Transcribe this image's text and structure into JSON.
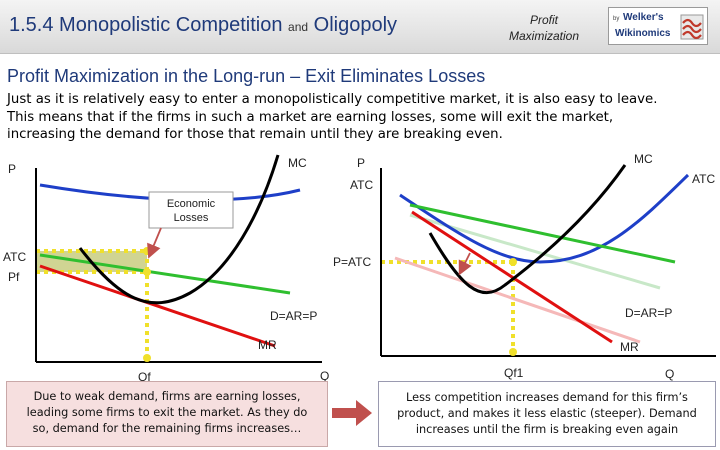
{
  "header": {
    "title": "1.5.4 Monopolistic Competition",
    "and": "and",
    "title2": "Oligopoly",
    "sub_line1": "Profit",
    "sub_line2": "Maximization",
    "logo_by": "by",
    "logo_name1": "Welker's",
    "logo_name2": "Wikinomics"
  },
  "subtitle": "Profit Maximization in the Long-run – Exit Eliminates Losses",
  "paragraph": {
    "line1": "Just as it is relatively easy to enter a monopolistically competitive market, it is also easy to leave.",
    "line2": "This means that if the firms in such a market are earning losses, some will exit the market,",
    "line3": "increasing the demand for those that remain until they are breaking even."
  },
  "left_graph": {
    "y_axis": "P",
    "x_axis": "Q",
    "mc": "MC",
    "atc": "ATC",
    "atc_axis": "ATC",
    "pf": "Pf",
    "qf": "Qf",
    "demand": "D=AR=P",
    "mr": "MR",
    "callout_line1": "Economic",
    "callout_line2": "Losses"
  },
  "right_graph": {
    "y_axis": "P",
    "x_axis": "Q",
    "mc": "MC",
    "atc": "ATC",
    "p_atc": "P=ATC",
    "q1": "Qf1",
    "demand": "D=AR=P",
    "mr": "MR"
  },
  "captions": {
    "left_line1": "Due to weak demand, firms are earning losses,",
    "left_line2": "leading some firms to exit the market. As they do",
    "left_line3": "so, demand for the remaining firms increases…",
    "right_line1": "Less competition increases demand for this firm’s",
    "right_line2": "product, and makes it less elastic (steeper). Demand",
    "right_line3": "increases until the firm is breaking even again"
  },
  "colors": {
    "title": "#1f3a7a",
    "atc": "#1e3fc8",
    "demand": "#2fbf2f",
    "mr": "#e01010",
    "dotted": "#f0e02a",
    "loss_area": "#c8cc80",
    "arrow": "#c0504d"
  }
}
